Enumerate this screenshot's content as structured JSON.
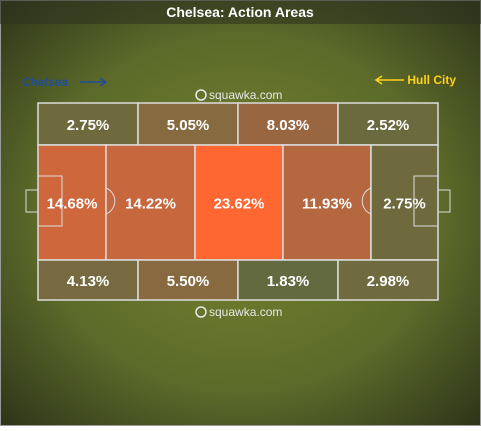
{
  "title": "Chelsea: Action Areas",
  "teams": {
    "home": {
      "label": "Chelsea",
      "color": "#1f4e9a"
    },
    "away": {
      "label": "Hull City",
      "color": "#ffd21a"
    }
  },
  "watermark": "squawka.com",
  "pitch": {
    "rows": [
      [
        {
          "label": "2.75%",
          "color": "#6e6a3e"
        },
        {
          "label": "5.05%",
          "color": "#866a40"
        },
        {
          "label": "8.03%",
          "color": "#986641"
        },
        {
          "label": "2.52%",
          "color": "#6b6a3f"
        }
      ],
      [
        {
          "label": "14.68%",
          "color": "#cf673d"
        },
        {
          "label": "14.22%",
          "color": "#c7673e"
        },
        {
          "label": "23.62%",
          "color": "#fe6632"
        },
        {
          "label": "11.93%",
          "color": "#b5683f"
        },
        {
          "label": "2.75%",
          "color": "#6e6a3e"
        }
      ],
      [
        {
          "label": "4.13%",
          "color": "#776a40"
        },
        {
          "label": "5.50%",
          "color": "#886a40"
        },
        {
          "label": "1.83%",
          "color": "#636a40"
        },
        {
          "label": "2.98%",
          "color": "#706a40"
        }
      ]
    ]
  }
}
